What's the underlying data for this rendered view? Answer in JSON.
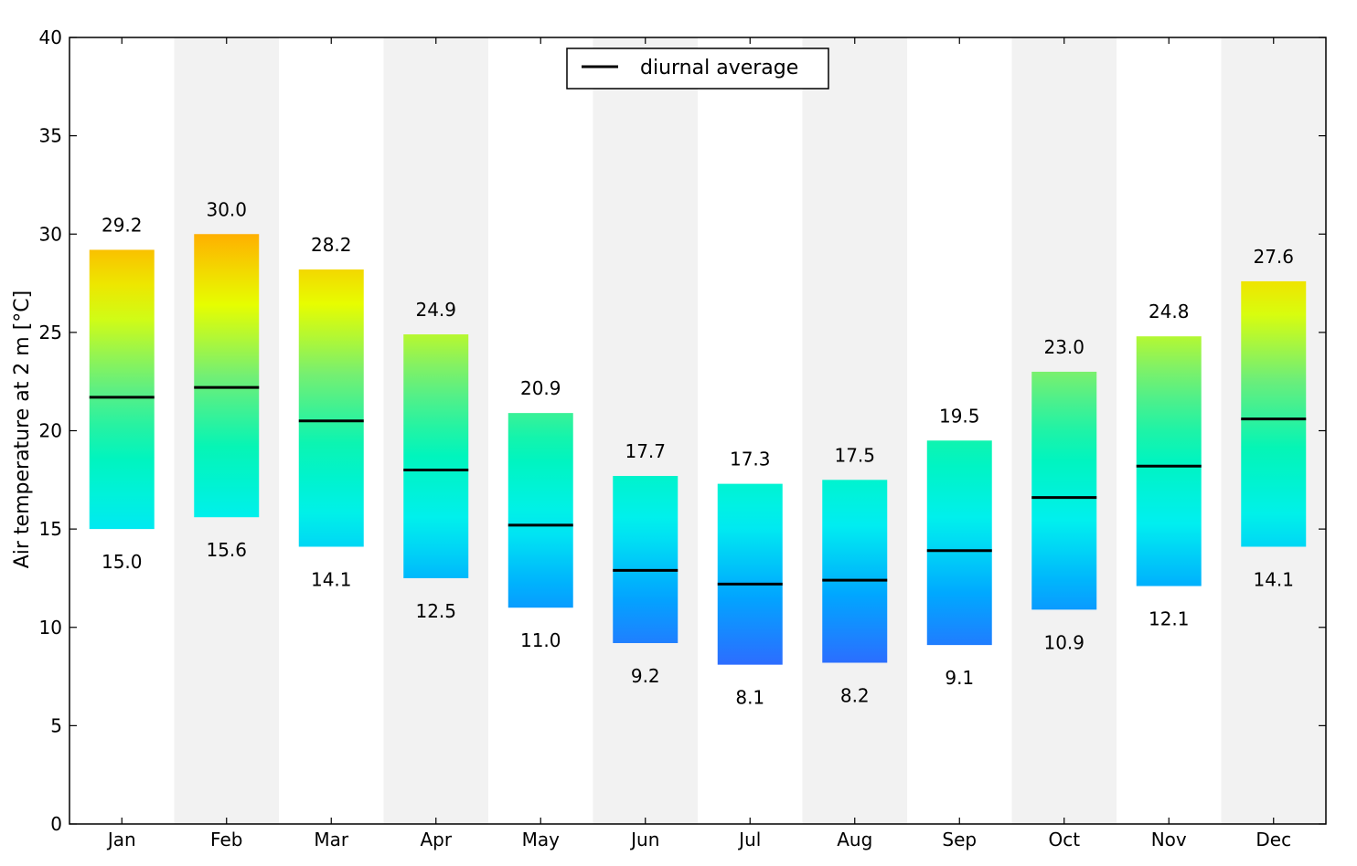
{
  "chart_data": {
    "type": "bar",
    "title": "",
    "xlabel": "",
    "ylabel": "Air temperature at 2 m [°C]",
    "ylim": [
      0,
      40
    ],
    "yticks": [
      0,
      5,
      10,
      15,
      20,
      25,
      30,
      35,
      40
    ],
    "grid": false,
    "legend": {
      "entries": [
        "diurnal average"
      ],
      "position": "top-center"
    },
    "categories": [
      "Jan",
      "Feb",
      "Mar",
      "Apr",
      "May",
      "Jun",
      "Jul",
      "Aug",
      "Sep",
      "Oct",
      "Nov",
      "Dec"
    ],
    "series": [
      {
        "name": "max",
        "values": [
          29.2,
          30.0,
          28.2,
          24.9,
          20.9,
          17.7,
          17.3,
          17.5,
          19.5,
          23.0,
          24.8,
          27.6
        ]
      },
      {
        "name": "min",
        "values": [
          15.0,
          15.6,
          14.1,
          12.5,
          11.0,
          9.2,
          8.1,
          8.2,
          9.1,
          10.9,
          12.1,
          14.1
        ]
      },
      {
        "name": "diurnal average",
        "values": [
          21.7,
          22.2,
          20.5,
          18.0,
          15.2,
          12.9,
          12.2,
          12.4,
          13.9,
          16.6,
          18.2,
          20.6
        ]
      }
    ],
    "max_labels": [
      "29.2",
      "30.0",
      "28.2",
      "24.9",
      "20.9",
      "17.7",
      "17.3",
      "17.5",
      "19.5",
      "23.0",
      "24.8",
      "27.6"
    ],
    "min_labels": [
      "15.0",
      "15.6",
      "14.1",
      "12.5",
      "11.0",
      "9.2",
      "8.1",
      "8.2",
      "9.1",
      "10.9",
      "12.1",
      "14.1"
    ],
    "colormap": [
      "#2e6bff",
      "#00a7ff",
      "#00f0f0",
      "#00f5b8",
      "#6fee78",
      "#e6ff00",
      "#ffb000"
    ],
    "shade_color": "#f2f2f2"
  }
}
